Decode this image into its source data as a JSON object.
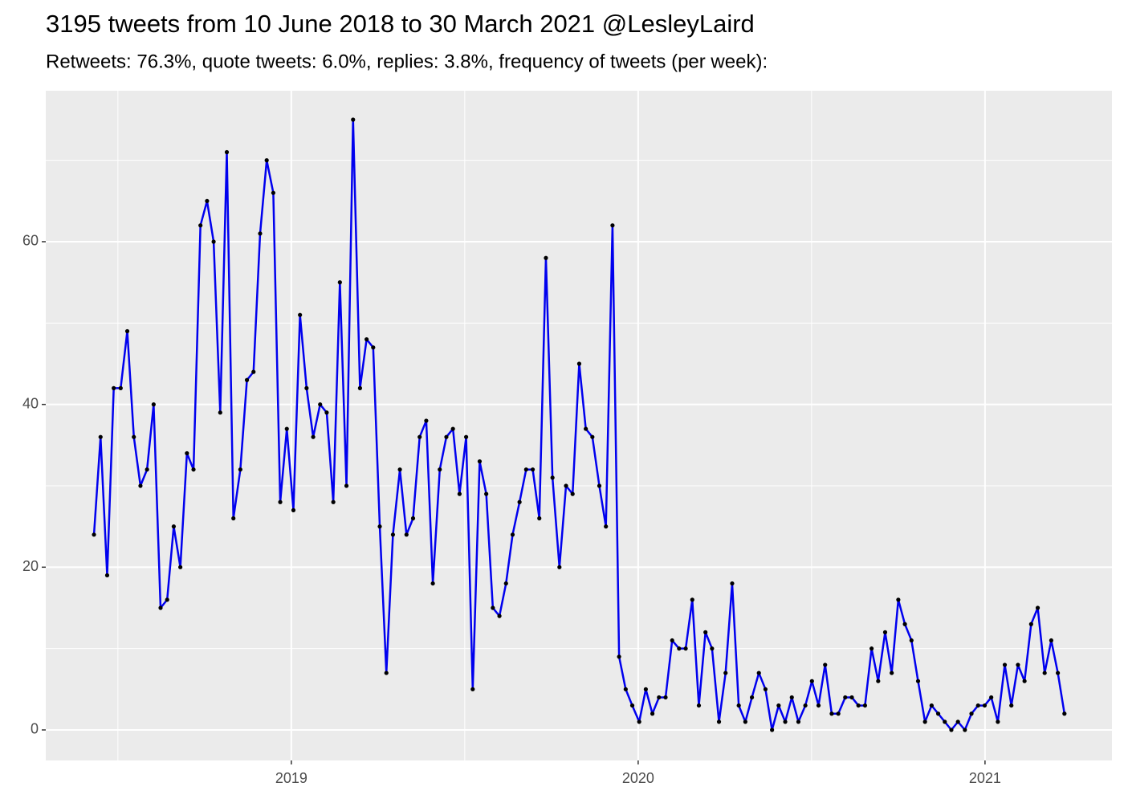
{
  "chart_data": {
    "type": "line",
    "title": "3195 tweets from 10 June 2018 to 30 March 2021 @LesleyLaird",
    "subtitle": "Retweets: 76.3%, quote tweets: 6.0%, replies: 3.8%, frequency of tweets (per week):",
    "x": [
      2018.431,
      2018.45,
      2018.469,
      2018.488,
      2018.508,
      2018.527,
      2018.546,
      2018.565,
      2018.584,
      2018.603,
      2018.623,
      2018.642,
      2018.661,
      2018.68,
      2018.699,
      2018.718,
      2018.738,
      2018.757,
      2018.776,
      2018.795,
      2018.814,
      2018.833,
      2018.853,
      2018.872,
      2018.891,
      2018.91,
      2018.929,
      2018.948,
      2018.968,
      2018.987,
      2019.006,
      2019.025,
      2019.044,
      2019.063,
      2019.083,
      2019.102,
      2019.121,
      2019.14,
      2019.159,
      2019.178,
      2019.198,
      2019.217,
      2019.236,
      2019.255,
      2019.274,
      2019.293,
      2019.313,
      2019.332,
      2019.351,
      2019.37,
      2019.389,
      2019.408,
      2019.428,
      2019.447,
      2019.466,
      2019.485,
      2019.504,
      2019.523,
      2019.543,
      2019.562,
      2019.581,
      2019.6,
      2019.619,
      2019.638,
      2019.658,
      2019.677,
      2019.696,
      2019.715,
      2019.734,
      2019.753,
      2019.773,
      2019.792,
      2019.811,
      2019.83,
      2019.849,
      2019.868,
      2019.888,
      2019.907,
      2019.926,
      2019.945,
      2019.964,
      2019.983,
      2020.003,
      2020.022,
      2020.041,
      2020.06,
      2020.079,
      2020.098,
      2020.118,
      2020.137,
      2020.156,
      2020.175,
      2020.194,
      2020.213,
      2020.233,
      2020.252,
      2020.271,
      2020.29,
      2020.309,
      2020.328,
      2020.348,
      2020.367,
      2020.386,
      2020.405,
      2020.424,
      2020.443,
      2020.462,
      2020.482,
      2020.501,
      2020.52,
      2020.539,
      2020.558,
      2020.577,
      2020.597,
      2020.616,
      2020.635,
      2020.654,
      2020.673,
      2020.692,
      2020.712,
      2020.731,
      2020.75,
      2020.769,
      2020.788,
      2020.807,
      2020.827,
      2020.846,
      2020.865,
      2020.884,
      2020.903,
      2020.922,
      2020.942,
      2020.961,
      2020.98,
      2020.999,
      2021.018,
      2021.037,
      2021.057,
      2021.076,
      2021.095,
      2021.114,
      2021.133,
      2021.152,
      2021.172,
      2021.191,
      2021.21,
      2021.229
    ],
    "series": [
      {
        "color": "#0000ee",
        "point_color": "#000000",
        "values": [
          24,
          36,
          19,
          42,
          42,
          49,
          36,
          30,
          32,
          40,
          15,
          16,
          25,
          20,
          34,
          32,
          62,
          65,
          60,
          39,
          71,
          26,
          32,
          43,
          44,
          61,
          70,
          66,
          28,
          37,
          27,
          51,
          42,
          36,
          40,
          39,
          28,
          55,
          30,
          75,
          42,
          48,
          47,
          25,
          7,
          24,
          32,
          24,
          26,
          36,
          38,
          18,
          32,
          36,
          37,
          29,
          36,
          5,
          33,
          29,
          15,
          14,
          18,
          24,
          28,
          32,
          32,
          26,
          58,
          31,
          20,
          30,
          29,
          45,
          37,
          36,
          30,
          25,
          62,
          9,
          5,
          3,
          1,
          5,
          2,
          4,
          4,
          11,
          10,
          10,
          16,
          3,
          12,
          10,
          1,
          7,
          18,
          3,
          1,
          4,
          7,
          5,
          0,
          3,
          1,
          4,
          1,
          3,
          6,
          3,
          8,
          2,
          2,
          4,
          4,
          3,
          3,
          10,
          6,
          12,
          7,
          16,
          13,
          11,
          6,
          1,
          3,
          2,
          1,
          0,
          1,
          0,
          2,
          3,
          3,
          4,
          1,
          8,
          3,
          8,
          6,
          13,
          15,
          7,
          11,
          7,
          2
        ]
      }
    ],
    "xlim": [
      2018.292,
      2021.366
    ],
    "xticks": [
      2019,
      2020,
      2021
    ],
    "x_minor_ticks": [
      2018.5,
      2019.5,
      2020.5
    ],
    "ylim": [
      -3.75,
      78.55
    ],
    "yticks": [
      0,
      20,
      40,
      60
    ],
    "y_minor_ticks": [
      10,
      30,
      50,
      70
    ],
    "grid": true
  }
}
